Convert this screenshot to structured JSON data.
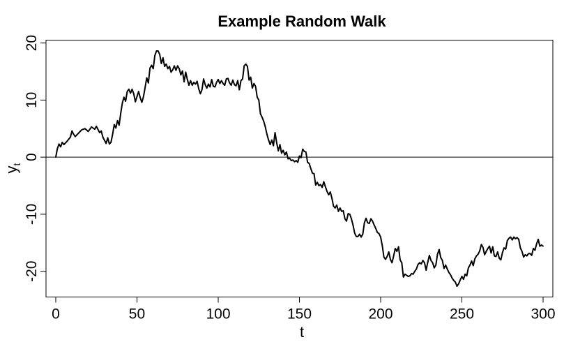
{
  "chart_data": {
    "type": "line",
    "title": "Example Random Walk",
    "xlabel": "t",
    "ylabel": {
      "main": "y",
      "subscript": "t"
    },
    "xlim": [
      -6,
      306
    ],
    "ylim": [
      -24.5,
      20.5
    ],
    "xticks": [
      0,
      50,
      100,
      150,
      200,
      250,
      300
    ],
    "yticks": [
      -20,
      -10,
      0,
      10,
      20
    ],
    "grid": false,
    "reference_line": {
      "y": 0,
      "color": "#000000"
    },
    "series": [
      {
        "color": "#000000",
        "points": [
          [
            0,
            0
          ],
          [
            1,
            1.5
          ],
          [
            2,
            2.3
          ],
          [
            3,
            1.8
          ],
          [
            4,
            2.6
          ],
          [
            5,
            2.2
          ],
          [
            7,
            2.8
          ],
          [
            9,
            3.5
          ],
          [
            10,
            4.6
          ],
          [
            11,
            4.0
          ],
          [
            12,
            3.6
          ],
          [
            14,
            4.2
          ],
          [
            16,
            4.8
          ],
          [
            18,
            5.0
          ],
          [
            20,
            4.5
          ],
          [
            22,
            5.3
          ],
          [
            24,
            4.9
          ],
          [
            25,
            5.4
          ],
          [
            27,
            4.3
          ],
          [
            28,
            4.6
          ],
          [
            29,
            3.5
          ],
          [
            31,
            2.4
          ],
          [
            32,
            3.4
          ],
          [
            33,
            2.3
          ],
          [
            34,
            2.6
          ],
          [
            35,
            4.0
          ],
          [
            36,
            5.7
          ],
          [
            37,
            5.1
          ],
          [
            38,
            6.4
          ],
          [
            39,
            5.6
          ],
          [
            40,
            7.7
          ],
          [
            41,
            9.5
          ],
          [
            42,
            10.5
          ],
          [
            43,
            9.8
          ],
          [
            44,
            11.5
          ],
          [
            45,
            11.9
          ],
          [
            46,
            11.2
          ],
          [
            47,
            11.9
          ],
          [
            48,
            11.1
          ],
          [
            49,
            9.7
          ],
          [
            50,
            10.6
          ],
          [
            51,
            11.5
          ],
          [
            52,
            10.4
          ],
          [
            53,
            9.6
          ],
          [
            54,
            10.6
          ],
          [
            55,
            12.2
          ],
          [
            56,
            13.9
          ],
          [
            57,
            13.0
          ],
          [
            58,
            15.6
          ],
          [
            59,
            16.1
          ],
          [
            60,
            15.5
          ],
          [
            61,
            17.8
          ],
          [
            62,
            18.6
          ],
          [
            63,
            18.6
          ],
          [
            64,
            18.0
          ],
          [
            65,
            16.4
          ],
          [
            66,
            17.4
          ],
          [
            67,
            15.9
          ],
          [
            68,
            16.3
          ],
          [
            69,
            15.5
          ],
          [
            70,
            15.9
          ],
          [
            71,
            14.9
          ],
          [
            72,
            15.3
          ],
          [
            73,
            16.0
          ],
          [
            74,
            15.2
          ],
          [
            75,
            16.0
          ],
          [
            76,
            15.5
          ],
          [
            77,
            14.4
          ],
          [
            78,
            15.1
          ],
          [
            79,
            13.2
          ],
          [
            80,
            14.9
          ],
          [
            81,
            13.6
          ],
          [
            82,
            12.6
          ],
          [
            83,
            13.4
          ],
          [
            84,
            12.6
          ],
          [
            85,
            13.1
          ],
          [
            86,
            12.8
          ],
          [
            87,
            13.3
          ],
          [
            88,
            12.0
          ],
          [
            89,
            11.1
          ],
          [
            90,
            11.8
          ],
          [
            91,
            13.7
          ],
          [
            92,
            12.7
          ],
          [
            93,
            12.1
          ],
          [
            94,
            12.8
          ],
          [
            95,
            12.3
          ],
          [
            96,
            13.6
          ],
          [
            97,
            12.4
          ],
          [
            98,
            12.3
          ],
          [
            99,
            13.1
          ],
          [
            100,
            13.6
          ],
          [
            101,
            12.9
          ],
          [
            102,
            13.4
          ],
          [
            103,
            12.9
          ],
          [
            104,
            12.6
          ],
          [
            105,
            13.7
          ],
          [
            106,
            13.8
          ],
          [
            107,
            13.0
          ],
          [
            108,
            12.6
          ],
          [
            109,
            13.5
          ],
          [
            110,
            12.7
          ],
          [
            111,
            12.5
          ],
          [
            112,
            13.4
          ],
          [
            113,
            11.8
          ],
          [
            114,
            13.4
          ],
          [
            115,
            13.7
          ],
          [
            116,
            16.0
          ],
          [
            117,
            16.3
          ],
          [
            118,
            15.9
          ],
          [
            119,
            13.5
          ],
          [
            120,
            14.0
          ],
          [
            121,
            12.1
          ],
          [
            122,
            12.9
          ],
          [
            123,
            12.4
          ],
          [
            124,
            10.5
          ],
          [
            125,
            10.0
          ],
          [
            126,
            7.6
          ],
          [
            127,
            7.0
          ],
          [
            128,
            6.3
          ],
          [
            129,
            5.3
          ],
          [
            130,
            4.0
          ],
          [
            131,
            3.0
          ],
          [
            132,
            2.2
          ],
          [
            133,
            3.0
          ],
          [
            134,
            2.0
          ],
          [
            135,
            4.3
          ],
          [
            136,
            2.5
          ],
          [
            137,
            1.1
          ],
          [
            138,
            2.2
          ],
          [
            139,
            0.7
          ],
          [
            140,
            1.2
          ],
          [
            141,
            0.4
          ],
          [
            142,
            0.9
          ],
          [
            143,
            -0.3
          ],
          [
            144,
            -0.2
          ],
          [
            145,
            -0.6
          ],
          [
            146,
            -0.5
          ],
          [
            147,
            -0.8
          ],
          [
            148,
            -0.6
          ],
          [
            149,
            -0.9
          ],
          [
            150,
            0.2
          ],
          [
            151,
            -0.1
          ],
          [
            152,
            1.4
          ],
          [
            153,
            1.0
          ],
          [
            154,
            0.9
          ],
          [
            155,
            -0.9
          ],
          [
            156,
            -1.1
          ],
          [
            157,
            -2.0
          ],
          [
            158,
            -2.8
          ],
          [
            159,
            -2.9
          ],
          [
            160,
            -4.9
          ],
          [
            161,
            -4.4
          ],
          [
            162,
            -5.0
          ],
          [
            163,
            -4.8
          ],
          [
            164,
            -5.3
          ],
          [
            165,
            -4.3
          ],
          [
            166,
            -5.2
          ],
          [
            167,
            -6.0
          ],
          [
            168,
            -6.6
          ],
          [
            169,
            -6.1
          ],
          [
            170,
            -7.2
          ],
          [
            171,
            -8.6
          ],
          [
            172,
            -8.9
          ],
          [
            173,
            -8.4
          ],
          [
            174,
            -9.5
          ],
          [
            175,
            -8.9
          ],
          [
            176,
            -9.5
          ],
          [
            177,
            -9.4
          ],
          [
            178,
            -10.8
          ],
          [
            179,
            -11.2
          ],
          [
            180,
            -9.9
          ],
          [
            181,
            -10.0
          ],
          [
            182,
            -10.8
          ],
          [
            183,
            -11.9
          ],
          [
            184,
            -13.3
          ],
          [
            185,
            -13.9
          ],
          [
            186,
            -13.9
          ],
          [
            187,
            -13.5
          ],
          [
            188,
            -14.0
          ],
          [
            189,
            -13.5
          ],
          [
            190,
            -11.5
          ],
          [
            191,
            -10.7
          ],
          [
            192,
            -11.5
          ],
          [
            193,
            -11.6
          ],
          [
            194,
            -10.8
          ],
          [
            195,
            -11.2
          ],
          [
            196,
            -11.9
          ],
          [
            197,
            -12.5
          ],
          [
            198,
            -13.2
          ],
          [
            199,
            -13.4
          ],
          [
            200,
            -14.0
          ],
          [
            201,
            -15.5
          ],
          [
            202,
            -17.5
          ],
          [
            203,
            -17.9
          ],
          [
            204,
            -17.4
          ],
          [
            205,
            -16.6
          ],
          [
            206,
            -17.9
          ],
          [
            207,
            -18.5
          ],
          [
            208,
            -17.3
          ],
          [
            209,
            -16.0
          ],
          [
            210,
            -16.5
          ],
          [
            211,
            -15.7
          ],
          [
            212,
            -18.0
          ],
          [
            213,
            -18.5
          ],
          [
            214,
            -21.0
          ],
          [
            215,
            -20.5
          ],
          [
            216,
            -20.7
          ],
          [
            217,
            -20.9
          ],
          [
            218,
            -20.8
          ],
          [
            219,
            -20.4
          ],
          [
            220,
            -20.5
          ],
          [
            221,
            -20.0
          ],
          [
            222,
            -19.6
          ],
          [
            223,
            -18.8
          ],
          [
            224,
            -18.5
          ],
          [
            225,
            -18.7
          ],
          [
            226,
            -18.1
          ],
          [
            227,
            -18.5
          ],
          [
            228,
            -19.8
          ],
          [
            229,
            -18.4
          ],
          [
            230,
            -17.2
          ],
          [
            231,
            -18.1
          ],
          [
            232,
            -18.5
          ],
          [
            233,
            -19.4
          ],
          [
            234,
            -18.9
          ],
          [
            235,
            -17.0
          ],
          [
            236,
            -16.2
          ],
          [
            237,
            -17.6
          ],
          [
            238,
            -18.1
          ],
          [
            239,
            -19.5
          ],
          [
            240,
            -18.9
          ],
          [
            241,
            -19.6
          ],
          [
            242,
            -20.2
          ],
          [
            243,
            -20.6
          ],
          [
            244,
            -21.2
          ],
          [
            245,
            -21.6
          ],
          [
            246,
            -21.9
          ],
          [
            247,
            -22.6
          ],
          [
            248,
            -22.2
          ],
          [
            249,
            -21.5
          ],
          [
            250,
            -20.9
          ],
          [
            251,
            -21.4
          ],
          [
            252,
            -20.5
          ],
          [
            253,
            -20.8
          ],
          [
            254,
            -19.4
          ],
          [
            255,
            -18.9
          ],
          [
            256,
            -18.2
          ],
          [
            257,
            -19.0
          ],
          [
            258,
            -17.8
          ],
          [
            259,
            -17.3
          ],
          [
            260,
            -17.0
          ],
          [
            261,
            -16.4
          ],
          [
            262,
            -15.3
          ],
          [
            263,
            -15.8
          ],
          [
            264,
            -17.1
          ],
          [
            265,
            -16.5
          ],
          [
            266,
            -16.0
          ],
          [
            267,
            -15.6
          ],
          [
            268,
            -16.8
          ],
          [
            269,
            -15.7
          ],
          [
            270,
            -17.3
          ],
          [
            271,
            -17.4
          ],
          [
            272,
            -16.6
          ],
          [
            273,
            -17.7
          ],
          [
            274,
            -18.0
          ],
          [
            275,
            -16.7
          ],
          [
            276,
            -15.9
          ],
          [
            277,
            -16.1
          ],
          [
            278,
            -14.6
          ],
          [
            279,
            -14.2
          ],
          [
            280,
            -14.0
          ],
          [
            281,
            -14.5
          ],
          [
            282,
            -14.0
          ],
          [
            283,
            -14.3
          ],
          [
            284,
            -14.1
          ],
          [
            285,
            -14.4
          ],
          [
            286,
            -15.9
          ],
          [
            287,
            -16.5
          ],
          [
            288,
            -17.5
          ],
          [
            289,
            -17.1
          ],
          [
            290,
            -17.3
          ],
          [
            291,
            -16.9
          ],
          [
            292,
            -16.9
          ],
          [
            293,
            -17.2
          ],
          [
            294,
            -16.0
          ],
          [
            295,
            -16.3
          ],
          [
            296,
            -15.2
          ],
          [
            297,
            -14.4
          ],
          [
            298,
            -15.6
          ],
          [
            299,
            -15.4
          ],
          [
            300,
            -15.6
          ]
        ]
      }
    ]
  }
}
